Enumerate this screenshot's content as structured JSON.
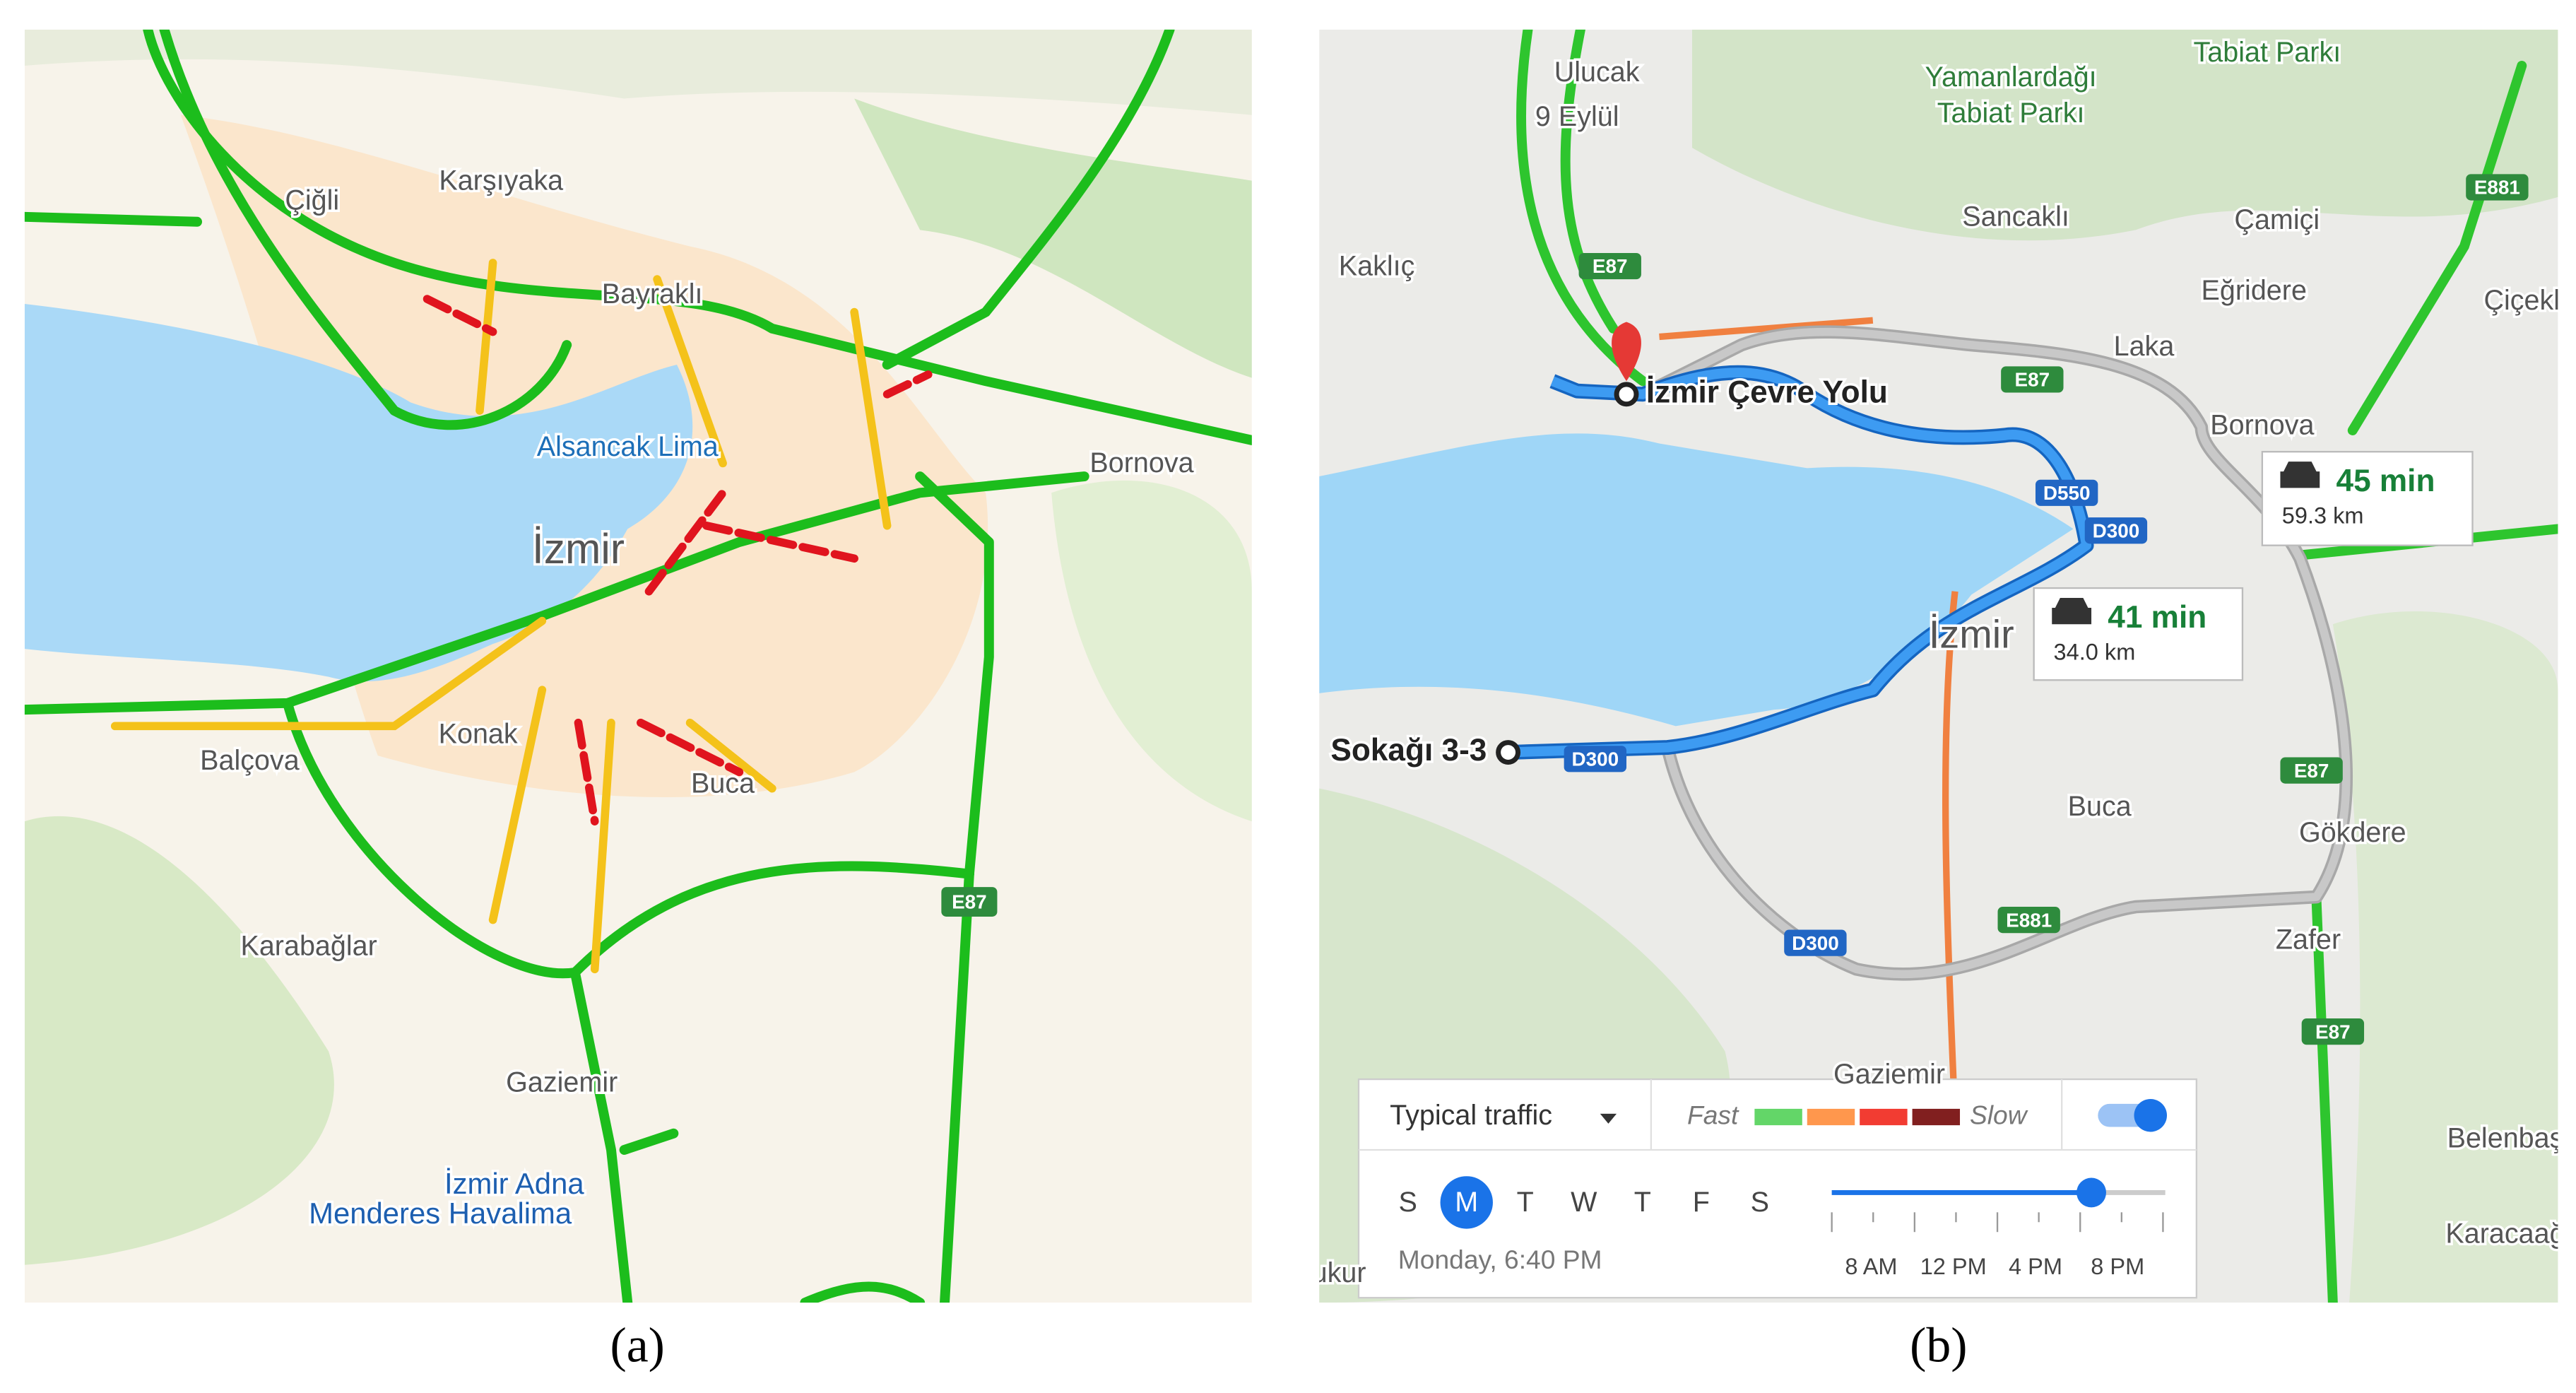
{
  "panel_a": {
    "places": [
      "Çiğli",
      "Karşıyaka",
      "Bayraklı",
      "Alsancak Lima",
      "İzmir",
      "Bornova",
      "Balçova",
      "Konak",
      "Buca",
      "Karabağlar",
      "Gaziemir",
      "İzmir Adna",
      "Menderes Havalima"
    ],
    "shields": [
      "E87"
    ],
    "caption": "(a)"
  },
  "panel_b": {
    "places": [
      "Ulucak",
      "9 Eylül",
      "Yamanlardağı",
      "Tabiat Parkı",
      "Tabiat Parkı",
      "Sancaklı",
      "Çamiçi",
      "Kaklıç",
      "Eğridere",
      "Çiçekl",
      "Laka",
      "Bornova",
      "İzmir",
      "Buca",
      "Gökdere",
      "Zafer",
      "Gaziemir",
      "Belenbaş",
      "Karacaağ",
      "ukur"
    ],
    "shields": [
      "E87",
      "E87",
      "D550",
      "D300",
      "D300",
      "D300",
      "E881",
      "E87",
      "E87",
      "E881"
    ],
    "origin": "Sokağı 3-3",
    "destination": "İzmir Çevre Yolu",
    "routes": [
      {
        "time": "45 min",
        "distance": "59.3 km"
      },
      {
        "time": "41 min",
        "distance": "34.0 km"
      }
    ],
    "traffic": {
      "mode": "Typical traffic",
      "fast": "Fast",
      "slow": "Slow",
      "colors": [
        "#63d668",
        "#ff974d",
        "#f23c32",
        "#811f1f"
      ],
      "days": [
        "S",
        "M",
        "T",
        "W",
        "T",
        "F",
        "S"
      ],
      "selected_day": 1,
      "time": "Monday, 6:40 PM",
      "hours": [
        "8 AM",
        "12 PM",
        "4 PM",
        "8 PM"
      ]
    },
    "caption": "(b)"
  }
}
